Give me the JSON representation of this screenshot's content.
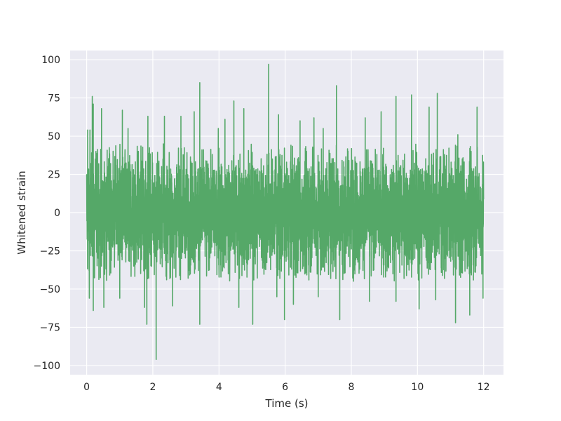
{
  "chart_data": {
    "type": "line",
    "title": "",
    "xlabel": "Time (s)",
    "ylabel": "Whitened strain",
    "xlim": [
      -0.5,
      12.6
    ],
    "ylim": [
      -106,
      106
    ],
    "xticks": [
      0,
      2,
      4,
      6,
      8,
      10,
      12
    ],
    "xtick_labels": [
      "0",
      "2",
      "4",
      "6",
      "8",
      "10",
      "12"
    ],
    "yticks": [
      -100,
      -75,
      -50,
      -25,
      0,
      25,
      50,
      75,
      100
    ],
    "ytick_labels": [
      "−100",
      "−75",
      "−50",
      "−25",
      "0",
      "25",
      "50",
      "75",
      "100"
    ],
    "grid": true,
    "background": "#eaeaf2",
    "gridcolor": "#ffffff",
    "series": [
      {
        "name": "",
        "color": "#55a868",
        "x_range": [
          0,
          12
        ],
        "typical_envelope": [
          -45,
          45
        ],
        "peaks": [
          {
            "x": 0.03,
            "y": 54
          },
          {
            "x": 0.1,
            "y": 54
          },
          {
            "x": 0.17,
            "y": 76
          },
          {
            "x": 0.2,
            "y": 71
          },
          {
            "x": 0.45,
            "y": 68
          },
          {
            "x": 1.08,
            "y": 67
          },
          {
            "x": 1.25,
            "y": 55
          },
          {
            "x": 1.85,
            "y": 63
          },
          {
            "x": 2.35,
            "y": 63
          },
          {
            "x": 2.85,
            "y": 63
          },
          {
            "x": 3.25,
            "y": 66
          },
          {
            "x": 3.42,
            "y": 85
          },
          {
            "x": 3.98,
            "y": 55
          },
          {
            "x": 4.18,
            "y": 61
          },
          {
            "x": 4.45,
            "y": 73
          },
          {
            "x": 4.75,
            "y": 68
          },
          {
            "x": 5.5,
            "y": 97
          },
          {
            "x": 5.8,
            "y": 64
          },
          {
            "x": 6.45,
            "y": 60
          },
          {
            "x": 6.87,
            "y": 62
          },
          {
            "x": 7.15,
            "y": 55
          },
          {
            "x": 7.55,
            "y": 83
          },
          {
            "x": 8.42,
            "y": 62
          },
          {
            "x": 8.9,
            "y": 66
          },
          {
            "x": 9.35,
            "y": 76
          },
          {
            "x": 9.82,
            "y": 77
          },
          {
            "x": 10.35,
            "y": 69
          },
          {
            "x": 10.6,
            "y": 78
          },
          {
            "x": 11.22,
            "y": 51
          },
          {
            "x": 11.8,
            "y": 69
          }
        ],
        "troughs": [
          {
            "x": 0.08,
            "y": -56
          },
          {
            "x": 0.2,
            "y": -64
          },
          {
            "x": 0.52,
            "y": -62
          },
          {
            "x": 1.0,
            "y": -56
          },
          {
            "x": 1.75,
            "y": -62
          },
          {
            "x": 1.82,
            "y": -73
          },
          {
            "x": 2.1,
            "y": -96
          },
          {
            "x": 2.6,
            "y": -61
          },
          {
            "x": 3.42,
            "y": -73
          },
          {
            "x": 4.6,
            "y": -62
          },
          {
            "x": 5.02,
            "y": -73
          },
          {
            "x": 5.75,
            "y": -55
          },
          {
            "x": 5.98,
            "y": -70
          },
          {
            "x": 6.25,
            "y": -60
          },
          {
            "x": 7.0,
            "y": -55
          },
          {
            "x": 7.65,
            "y": -70
          },
          {
            "x": 8.55,
            "y": -58
          },
          {
            "x": 9.35,
            "y": -58
          },
          {
            "x": 10.05,
            "y": -63
          },
          {
            "x": 10.55,
            "y": -57
          },
          {
            "x": 11.15,
            "y": -72
          },
          {
            "x": 11.58,
            "y": -67
          },
          {
            "x": 11.98,
            "y": -56
          }
        ]
      }
    ]
  }
}
